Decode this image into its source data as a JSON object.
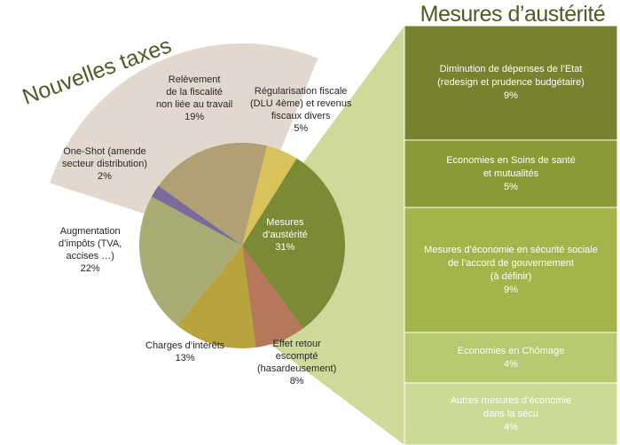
{
  "left_title": "Nouvelles taxes",
  "right_title": "Mesures d’austérité",
  "colors": {
    "fan": "#e3d8cd",
    "wedge": "#cfd99a",
    "panel_1": "#77812e",
    "panel_2": "#8a9a37",
    "panel_3": "#a2b54a",
    "panel_4": "#b6c96f",
    "panel_5": "#cbda94",
    "title_green": "#4d5b24"
  },
  "chart_data": {
    "type": "pie",
    "slices": [
      {
        "lines": [
          "Mesures",
          "d’austérité",
          "31%"
        ],
        "value": 31,
        "color": "#7a8a35"
      },
      {
        "lines": [
          "Effet retour",
          "escompté",
          "(hasardeusement)",
          "8%"
        ],
        "value": 8,
        "color": "#b5785a"
      },
      {
        "lines": [
          "Charges d’intérêts",
          "13%"
        ],
        "value": 13,
        "color": "#b8a33d"
      },
      {
        "lines": [
          "Augmentation",
          "d’impôts (TVA,",
          "accises …)",
          "22%"
        ],
        "value": 22,
        "color": "#a9ac74"
      },
      {
        "lines": [
          "One-Shot (amende",
          "secteur distribution)",
          "2%"
        ],
        "value": 2,
        "color": "#7a6b98"
      },
      {
        "lines": [
          "Relèvement",
          "de la fiscalité",
          "non liée au travail",
          "19%"
        ],
        "value": 19,
        "color": "#b0a074"
      },
      {
        "lines": [
          "Régularisation fiscale",
          "(DLU 4ème) et revenus",
          "fiscaux divers",
          "5%"
        ],
        "value": 5,
        "color": "#d8c25a"
      }
    ],
    "breakdown": [
      {
        "lines": [
          "Diminution de dépenses de l’Etat",
          "(redesign et prudence budgétaire)",
          "9%"
        ],
        "value": 9
      },
      {
        "lines": [
          "Economies en Soins de santé",
          "et mutualités",
          "5%"
        ],
        "value": 5
      },
      {
        "lines": [
          "Mesures d’économie en sécurité sociale",
          "de l’accord de gouvernement",
          "(à définir)",
          "9%"
        ],
        "value": 9
      },
      {
        "lines": [
          "Economies en Chômage",
          "4%"
        ],
        "value": 4
      },
      {
        "lines": [
          "Autres mesures d’économie",
          "dans la sécu",
          "4%"
        ],
        "value": 4
      }
    ]
  }
}
